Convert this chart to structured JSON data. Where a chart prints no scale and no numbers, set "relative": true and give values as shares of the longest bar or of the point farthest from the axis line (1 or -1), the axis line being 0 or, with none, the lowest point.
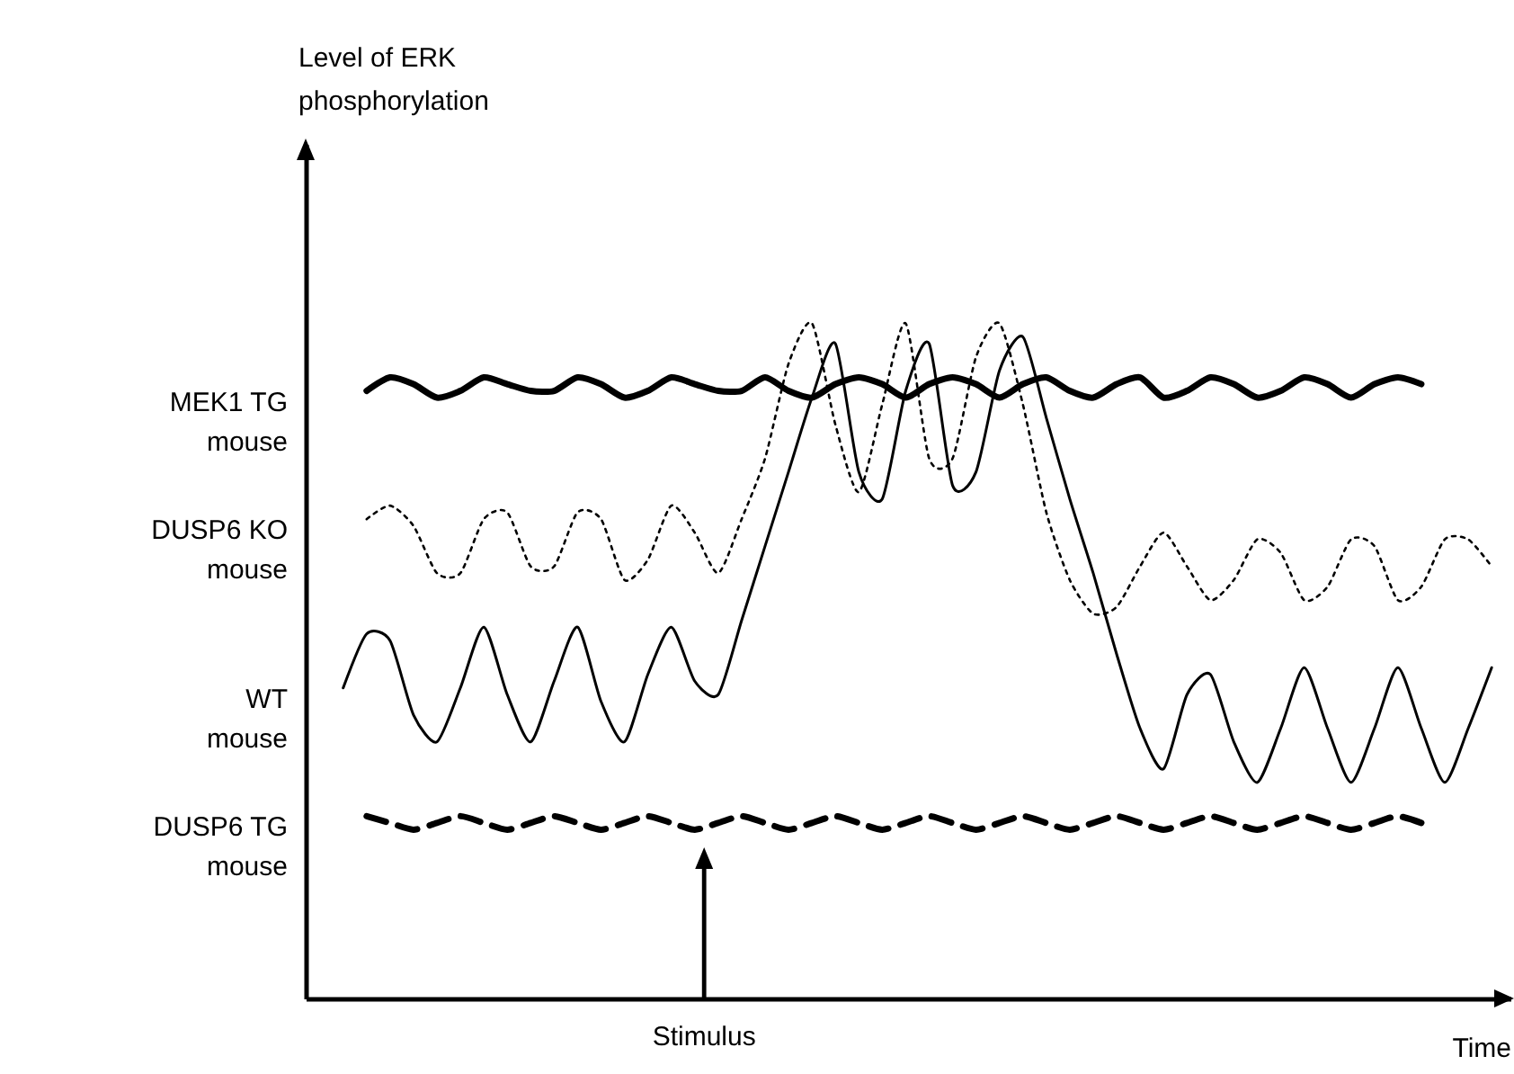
{
  "chart_data": {
    "type": "line",
    "relative": true,
    "xlabel": "Time",
    "annotations": [
      "Level of ERK phosphorylation",
      "Stimulus"
    ],
    "categories": [
      null,
      null,
      null,
      null,
      null,
      null,
      null,
      null,
      null,
      null,
      null,
      null,
      null,
      null,
      null,
      null,
      null,
      null,
      null,
      null,
      null,
      null,
      null,
      null,
      null,
      null,
      null,
      null,
      null,
      null,
      null,
      null,
      null,
      null,
      null,
      null,
      null,
      null,
      null,
      null,
      null,
      null,
      null,
      null,
      null,
      null,
      null,
      null,
      null,
      null
    ],
    "series": [
      {
        "name": "MEK1 TG mouse",
        "color": "#000000",
        "line_style": "solid",
        "values": [
          null,
          0.9,
          0.92,
          0.91,
          0.89,
          0.9,
          0.92,
          0.91,
          0.9,
          0.9,
          0.92,
          0.91,
          0.89,
          0.9,
          0.92,
          0.91,
          0.9,
          0.9,
          0.92,
          0.9,
          0.89,
          0.91,
          0.92,
          0.91,
          0.89,
          0.91,
          0.92,
          0.91,
          0.89,
          0.91,
          0.92,
          0.9,
          0.89,
          0.91,
          0.92,
          0.89,
          0.9,
          0.92,
          0.91,
          0.89,
          0.9,
          0.92,
          0.91,
          0.89,
          0.91,
          0.92,
          0.91,
          null,
          null,
          null
        ]
      },
      {
        "name": "DUSP6 KO mouse",
        "color": "#000000",
        "line_style": "dotted",
        "values": [
          null,
          0.71,
          0.73,
          0.7,
          0.63,
          0.63,
          0.71,
          0.72,
          0.64,
          0.64,
          0.72,
          0.71,
          0.62,
          0.65,
          0.73,
          0.69,
          0.63,
          0.71,
          0.8,
          0.94,
          1.0,
          0.85,
          0.75,
          0.88,
          1.0,
          0.8,
          0.8,
          0.95,
          1.0,
          0.88,
          0.72,
          0.62,
          0.57,
          0.58,
          0.64,
          0.69,
          0.64,
          0.59,
          0.62,
          0.68,
          0.66,
          0.59,
          0.61,
          0.68,
          0.67,
          0.59,
          0.61,
          0.68,
          0.68,
          0.64
        ]
      },
      {
        "name": "WT mouse",
        "color": "#000000",
        "line_style": "solid",
        "values": [
          0.46,
          0.54,
          0.53,
          0.42,
          0.38,
          0.46,
          0.55,
          0.45,
          0.38,
          0.47,
          0.55,
          0.44,
          0.38,
          0.48,
          0.55,
          0.47,
          0.45,
          0.56,
          0.67,
          0.78,
          0.89,
          0.97,
          0.78,
          0.74,
          0.9,
          0.97,
          0.76,
          0.78,
          0.93,
          0.98,
          0.86,
          0.74,
          0.63,
          0.51,
          0.4,
          0.34,
          0.45,
          0.48,
          0.38,
          0.32,
          0.4,
          0.49,
          0.4,
          0.32,
          0.4,
          0.49,
          0.4,
          0.32,
          0.4,
          0.49
        ]
      },
      {
        "name": "DUSP6 TG mouse",
        "color": "#000000",
        "line_style": "dashed",
        "values": [
          null,
          0.27,
          0.26,
          0.25,
          0.26,
          0.27,
          0.26,
          0.25,
          0.26,
          0.27,
          0.26,
          0.25,
          0.26,
          0.27,
          0.26,
          0.25,
          0.26,
          0.27,
          0.26,
          0.25,
          0.26,
          0.27,
          0.26,
          0.25,
          0.26,
          0.27,
          0.26,
          0.25,
          0.26,
          0.27,
          0.26,
          0.25,
          0.26,
          0.27,
          0.26,
          0.25,
          0.26,
          0.27,
          0.26,
          0.25,
          0.26,
          0.27,
          0.26,
          0.25,
          0.26,
          0.27,
          0.26,
          null,
          null,
          null
        ]
      }
    ]
  }
}
